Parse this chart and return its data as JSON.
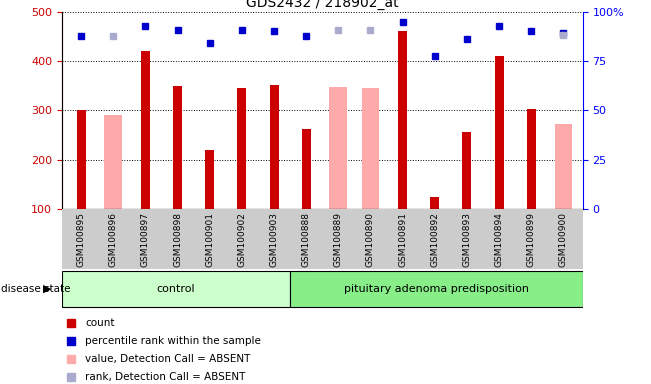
{
  "title": "GDS2432 / 218902_at",
  "samples": [
    "GSM100895",
    "GSM100896",
    "GSM100897",
    "GSM100898",
    "GSM100901",
    "GSM100902",
    "GSM100903",
    "GSM100888",
    "GSM100889",
    "GSM100890",
    "GSM100891",
    "GSM100892",
    "GSM100893",
    "GSM100894",
    "GSM100899",
    "GSM100900"
  ],
  "count_values": [
    300,
    null,
    420,
    350,
    220,
    345,
    352,
    263,
    null,
    null,
    460,
    125,
    256,
    410,
    302,
    null
  ],
  "absent_values": [
    null,
    290,
    null,
    null,
    null,
    null,
    null,
    null,
    348,
    345,
    null,
    null,
    null,
    null,
    null,
    273
  ],
  "rank_values": [
    451,
    null,
    470,
    462,
    437,
    462,
    460,
    450,
    null,
    null,
    478,
    410,
    445,
    470,
    460,
    457
  ],
  "absent_rank_values": [
    null,
    450,
    null,
    null,
    null,
    null,
    null,
    null,
    463,
    462,
    null,
    null,
    null,
    null,
    null,
    452
  ],
  "control_count": 7,
  "pituitary_count": 9,
  "ylim_left": [
    100,
    500
  ],
  "ylim_right": [
    0,
    100
  ],
  "yticks_left": [
    100,
    200,
    300,
    400,
    500
  ],
  "yticks_right": [
    0,
    25,
    50,
    75,
    100
  ],
  "ytick_right_labels": [
    "0",
    "25",
    "50",
    "75",
    "100%"
  ],
  "bar_color_red": "#cc0000",
  "bar_color_pink": "#ffaaaa",
  "square_color_blue": "#0000cc",
  "square_color_lightblue": "#aaaacc",
  "control_bg": "#ccffcc",
  "pituitary_bg": "#88ee88",
  "gray_bg": "#cccccc",
  "disease_label": "disease state",
  "control_label": "control",
  "pituitary_label": "pituitary adenoma predisposition",
  "legend_items": [
    {
      "label": "count",
      "color": "#cc0000"
    },
    {
      "label": "percentile rank within the sample",
      "color": "#0000cc"
    },
    {
      "label": "value, Detection Call = ABSENT",
      "color": "#ffaaaa"
    },
    {
      "label": "rank, Detection Call = ABSENT",
      "color": "#aaaacc"
    }
  ]
}
